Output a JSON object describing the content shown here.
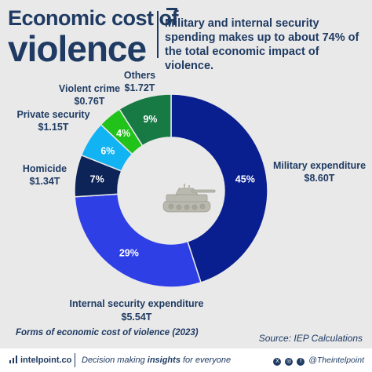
{
  "header": {
    "title_line1": "Economic cost of",
    "title_line2": "violence",
    "subtitle": "Military and internal security spending makes up to about 74% of the total economic impact of violence."
  },
  "chart_data": {
    "type": "pie",
    "donut": true,
    "title": "Economic cost of violence",
    "slices": [
      {
        "label": "Military expenditure",
        "value": 8.6,
        "value_label": "$8.60T",
        "percent": 45,
        "percent_label": "45%",
        "color": "#0a1f8f"
      },
      {
        "label": "Internal security expenditure",
        "value": 5.54,
        "value_label": "$5.54T",
        "percent": 29,
        "percent_label": "29%",
        "color": "#2f3fe6"
      },
      {
        "label": "Homicide",
        "value": 1.34,
        "value_label": "$1.34T",
        "percent": 7,
        "percent_label": "7%",
        "color": "#0d2458"
      },
      {
        "label": "Private security",
        "value": 1.15,
        "value_label": "$1.15T",
        "percent": 6,
        "percent_label": "6%",
        "color": "#11b3f2"
      },
      {
        "label": "Violent crime",
        "value": 0.76,
        "value_label": "$0.76T",
        "percent": 4,
        "percent_label": "4%",
        "color": "#21c21a"
      },
      {
        "label": "Others",
        "value": 1.72,
        "value_label": "$1.72T",
        "percent": 9,
        "percent_label": "9%",
        "color": "#177a45"
      }
    ]
  },
  "footer": {
    "caption": "Forms of economic cost of violence (2023)",
    "source": "Source: IEP Calculations"
  },
  "bottom_bar": {
    "brand": "intelpoint.co",
    "tagline_start": "Decision making ",
    "tagline_bold": "insights",
    "tagline_end": " for everyone",
    "social_handle": "@Theintelpoint",
    "social_icons": [
      "x-icon",
      "instagram-icon",
      "facebook-icon"
    ]
  },
  "center_icon": "tank-icon"
}
